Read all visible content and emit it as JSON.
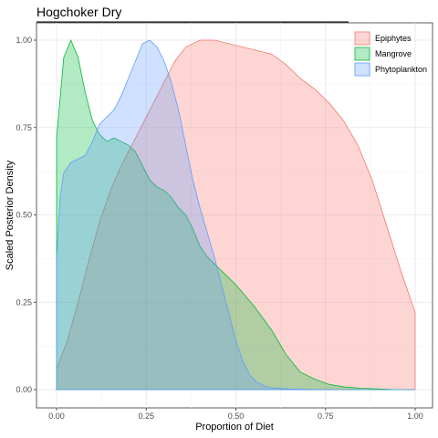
{
  "chart_data": {
    "type": "area",
    "title": "Hogchoker Dry",
    "xlabel": "Proportion of Diet",
    "ylabel": "Scaled Posterior Density",
    "xlim": [
      0,
      1
    ],
    "ylim": [
      0,
      1
    ],
    "x_ticks": [
      "0.00",
      "0.25",
      "0.50",
      "0.75",
      "1.00"
    ],
    "y_ticks": [
      "0.00",
      "0.25",
      "0.50",
      "0.75",
      "1.00"
    ],
    "grid": true,
    "legend_position": "top-right",
    "series": [
      {
        "name": "Epiphytes",
        "fill": "#F8766D",
        "stroke": "#F8766D",
        "x": [
          0,
          0.03,
          0.06,
          0.09,
          0.12,
          0.15,
          0.18,
          0.21,
          0.24,
          0.27,
          0.3,
          0.33,
          0.36,
          0.4,
          0.44,
          0.48,
          0.52,
          0.56,
          0.6,
          0.64,
          0.68,
          0.72,
          0.76,
          0.8,
          0.84,
          0.88,
          0.92,
          0.96,
          1.0
        ],
        "y": [
          0.06,
          0.14,
          0.25,
          0.37,
          0.48,
          0.57,
          0.64,
          0.7,
          0.76,
          0.82,
          0.88,
          0.94,
          0.98,
          1.0,
          1.0,
          0.99,
          0.98,
          0.97,
          0.96,
          0.93,
          0.89,
          0.86,
          0.82,
          0.77,
          0.7,
          0.6,
          0.47,
          0.34,
          0.22
        ]
      },
      {
        "name": "Mangrove",
        "fill": "#00BA38",
        "stroke": "#00BA38",
        "x": [
          0,
          0.02,
          0.04,
          0.06,
          0.08,
          0.1,
          0.12,
          0.14,
          0.16,
          0.18,
          0.2,
          0.22,
          0.24,
          0.26,
          0.28,
          0.3,
          0.32,
          0.34,
          0.36,
          0.38,
          0.4,
          0.42,
          0.44,
          0.46,
          0.5,
          0.55,
          0.6,
          0.64,
          0.68,
          0.72,
          0.76,
          0.8,
          0.85,
          0.9,
          0.95,
          1.0
        ],
        "y": [
          0.72,
          0.95,
          1.0,
          0.95,
          0.85,
          0.77,
          0.73,
          0.71,
          0.72,
          0.71,
          0.7,
          0.68,
          0.64,
          0.6,
          0.58,
          0.57,
          0.55,
          0.52,
          0.5,
          0.46,
          0.41,
          0.38,
          0.36,
          0.34,
          0.3,
          0.24,
          0.17,
          0.1,
          0.05,
          0.03,
          0.015,
          0.008,
          0.004,
          0.002,
          0.0,
          0.0
        ]
      },
      {
        "name": "Phytoplankton",
        "fill": "#619CFF",
        "stroke": "#619CFF",
        "x": [
          0,
          0.01,
          0.02,
          0.04,
          0.06,
          0.08,
          0.1,
          0.12,
          0.14,
          0.16,
          0.18,
          0.2,
          0.22,
          0.24,
          0.26,
          0.28,
          0.3,
          0.32,
          0.34,
          0.36,
          0.38,
          0.4,
          0.42,
          0.44,
          0.46,
          0.48,
          0.5,
          0.52,
          0.54,
          0.56,
          0.58,
          0.6,
          0.65,
          0.7,
          0.8,
          0.9,
          1.0
        ],
        "y": [
          0.37,
          0.55,
          0.62,
          0.65,
          0.66,
          0.67,
          0.71,
          0.76,
          0.78,
          0.8,
          0.84,
          0.89,
          0.94,
          0.99,
          1.0,
          0.98,
          0.94,
          0.88,
          0.8,
          0.7,
          0.6,
          0.52,
          0.45,
          0.38,
          0.3,
          0.22,
          0.14,
          0.08,
          0.04,
          0.02,
          0.01,
          0.005,
          0.002,
          0.001,
          0.0,
          0.0,
          0.0
        ]
      }
    ]
  }
}
